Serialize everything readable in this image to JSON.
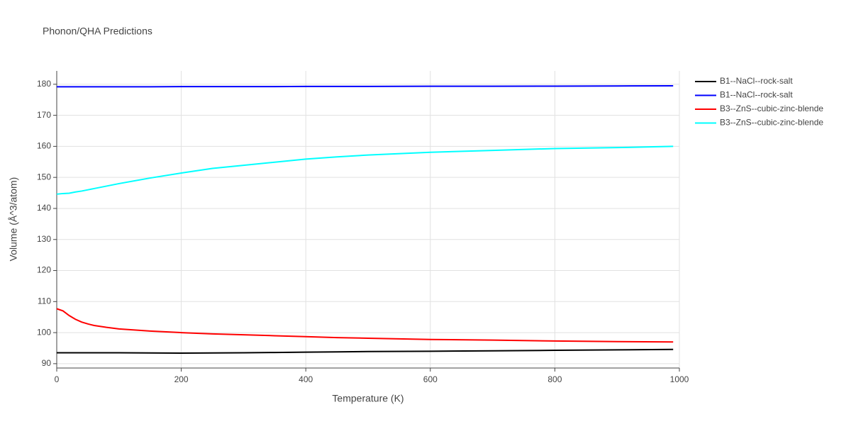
{
  "chart_data": {
    "type": "line",
    "title": "Phonon/QHA Predictions",
    "x_label": "Temperature (K)",
    "y_label": "Volume (Å^3/atom)",
    "x": [
      0,
      10,
      20,
      30,
      40,
      50,
      60,
      80,
      100,
      150,
      200,
      250,
      300,
      350,
      400,
      450,
      500,
      600,
      700,
      800,
      900,
      990
    ],
    "series": [
      {
        "name": "B1--NaCl--rock-salt",
        "color": "#000000",
        "values": [
          93.5,
          93.5,
          93.5,
          93.5,
          93.5,
          93.5,
          93.5,
          93.5,
          93.5,
          93.45,
          93.4,
          93.45,
          93.5,
          93.6,
          93.7,
          93.8,
          93.9,
          94.0,
          94.15,
          94.3,
          94.45,
          94.6
        ]
      },
      {
        "name": "B1--NaCl--rock-salt",
        "color": "#0000ff",
        "values": [
          179.2,
          179.2,
          179.2,
          179.2,
          179.2,
          179.2,
          179.2,
          179.2,
          179.2,
          179.2,
          179.25,
          179.25,
          179.25,
          179.25,
          179.3,
          179.3,
          179.3,
          179.35,
          179.35,
          179.4,
          179.45,
          179.5
        ]
      },
      {
        "name": "B3--ZnS--cubic-zinc-blende",
        "color": "#ff0000",
        "values": [
          107.7,
          107.0,
          105.5,
          104.3,
          103.4,
          102.8,
          102.3,
          101.7,
          101.2,
          100.5,
          100.0,
          99.6,
          99.3,
          99.0,
          98.7,
          98.4,
          98.2,
          97.8,
          97.6,
          97.3,
          97.1,
          97.0
        ]
      },
      {
        "name": "B3--ZnS--cubic-zinc-blende",
        "color": "#00ffff",
        "values": [
          144.6,
          144.8,
          144.9,
          145.3,
          145.6,
          146.0,
          146.4,
          147.2,
          148.0,
          149.8,
          151.4,
          152.9,
          153.9,
          154.9,
          155.9,
          156.6,
          157.2,
          158.1,
          158.7,
          159.3,
          159.6,
          160.0
        ]
      }
    ],
    "xlim": [
      0,
      1000
    ],
    "xticks": [
      0,
      200,
      400,
      600,
      800,
      1000
    ],
    "ylim": [
      88.6,
      184.3
    ],
    "yticks": [
      90,
      100,
      110,
      120,
      130,
      140,
      150,
      160,
      170,
      180
    ],
    "grid": true,
    "legend": "right"
  }
}
